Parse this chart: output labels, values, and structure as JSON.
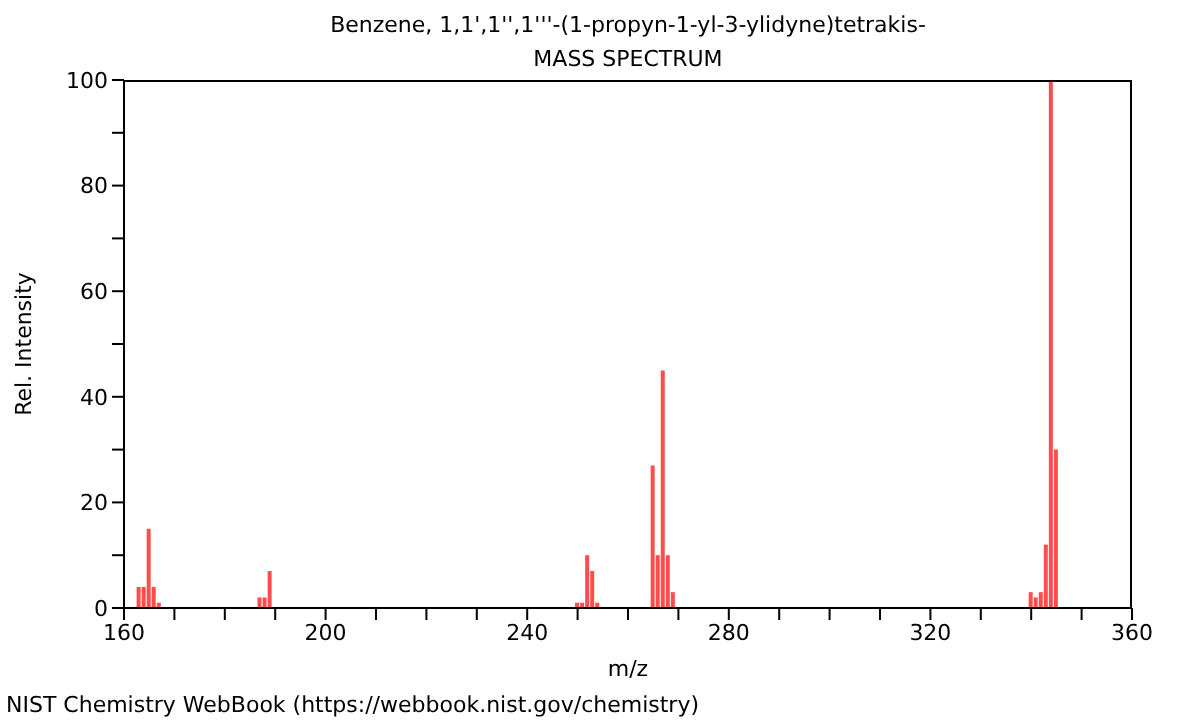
{
  "chart_data": {
    "type": "bar",
    "title": "Benzene, 1,1',1'',1'''-(1-propyn-1-yl-3-ylidyne)tetrakis-",
    "subtitle": "MASS SPECTRUM",
    "xlabel": "m/z",
    "ylabel": "Rel. Intensity",
    "annotations": [
      "NIST Chemistry WebBook (https://webbook.nist.gov/chemistry)"
    ],
    "x": [
      163,
      164,
      165,
      166,
      167,
      187,
      188,
      189,
      250,
      251,
      252,
      253,
      254,
      265,
      266,
      267,
      268,
      269,
      340,
      341,
      342,
      343,
      344,
      345
    ],
    "values": [
      4,
      4,
      15,
      4,
      1,
      2,
      2,
      7,
      1,
      1,
      10,
      7,
      1,
      27,
      10,
      45,
      10,
      3,
      3,
      2,
      3,
      12,
      100,
      30
    ],
    "color": "#ff4d4d",
    "xlim": [
      160,
      360
    ],
    "xticks": [
      160,
      {
        "value": 170,
        "label": null
      },
      {
        "value": 180,
        "label": null
      },
      {
        "value": 190,
        "label": null
      },
      200,
      {
        "value": 210,
        "label": null
      },
      {
        "value": 220,
        "label": null
      },
      {
        "value": 230,
        "label": null
      },
      240,
      {
        "value": 250,
        "label": null
      },
      {
        "value": 260,
        "label": null
      },
      {
        "value": 270,
        "label": null
      },
      280,
      {
        "value": 290,
        "label": null
      },
      {
        "value": 300,
        "label": null
      },
      {
        "value": 310,
        "label": null
      },
      320,
      {
        "value": 330,
        "label": null
      },
      {
        "value": 340,
        "label": null
      },
      {
        "value": 350,
        "label": null
      },
      360
    ],
    "ylim": [
      0,
      100
    ],
    "yticks": [
      0,
      {
        "value": 10,
        "label": null
      },
      20,
      {
        "value": 30,
        "label": null
      },
      40,
      {
        "value": 50,
        "label": null
      },
      60,
      {
        "value": 70,
        "label": null
      },
      80,
      {
        "value": 90,
        "label": null
      },
      100
    ],
    "grid": false,
    "legend": false
  }
}
